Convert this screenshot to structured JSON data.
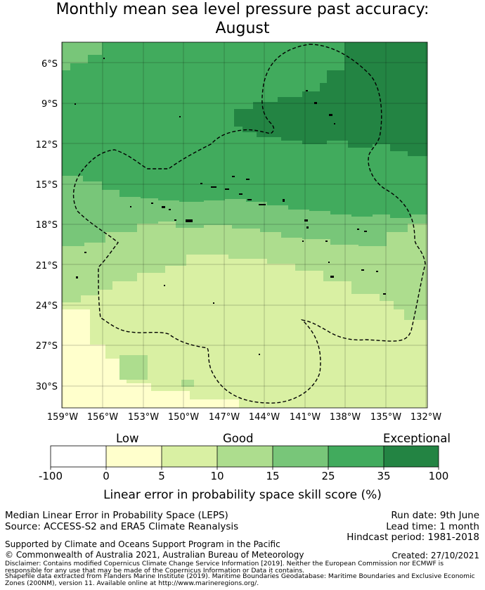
{
  "title_line1": "Monthly mean sea level pressure past accuracy:",
  "title_line2": "August",
  "map": {
    "lat_labels": [
      "6°S",
      "9°S",
      "12°S",
      "15°S",
      "18°S",
      "21°S",
      "24°S",
      "27°S",
      "30°S"
    ],
    "lon_labels": [
      "159°W",
      "156°W",
      "153°W",
      "150°W",
      "147°W",
      "144°W",
      "141°W",
      "138°W",
      "135°W",
      "132°W"
    ]
  },
  "colorbar": {
    "category_labels": [
      "Low",
      "Good",
      "Exceptional"
    ],
    "ticks": [
      "-100",
      "0",
      "5",
      "10",
      "15",
      "25",
      "35",
      "100"
    ],
    "colors": [
      "#ffffff",
      "#ffffcc",
      "#d9f0a3",
      "#addd8e",
      "#78c679",
      "#41ab5d",
      "#238443"
    ],
    "xlabel": "Linear error in probability space skill score (%)"
  },
  "info": {
    "method": "Median Linear Error in Probability Space (LEPS)",
    "source": "Source: ACCESS-S2 and ERA5 Climate Reanalysis",
    "run_date": "Run date: 9th June",
    "lead_time": "Lead time: 1 month",
    "hindcast": "Hindcast period: 1981-2018",
    "support": "Supported by Climate and Oceans Support Program in the Pacific",
    "copyright": "© Commonwealth of Australia 2021, Australian Bureau of Meteorology",
    "created": "Created: 27/10/2021",
    "disclaimer1": "Disclaimer: Contains modified Copernicus Climate Change Service Information [2019]. Neither the European Commission nor ECMWF is",
    "disclaimer2": "responsible for any use that may be made of the Copernicus Information or Data it contains.",
    "shapefile1": "Shapefile data extracted from Flanders Marine Institute (2019). Maritime Boundaries Geodatabase: Maritime Boundaries and Exclusive Economic",
    "shapefile2": "Zones (200NM), version 11. Available online at http://www.marineregions.org/."
  }
}
